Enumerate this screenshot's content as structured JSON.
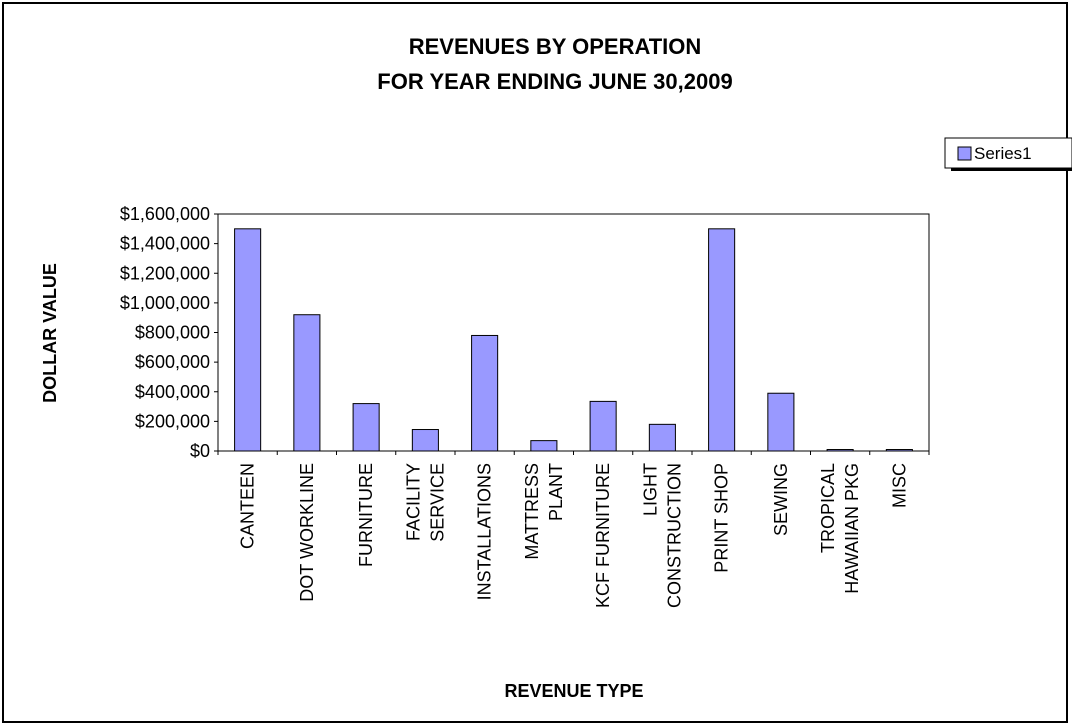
{
  "chart_data": {
    "type": "bar",
    "title": "REVENUES BY OPERATION",
    "subtitle": "FOR YEAR ENDING JUNE 30,2009",
    "xlabel": "REVENUE TYPE",
    "ylabel": "DOLLAR VALUE",
    "ylim": [
      0,
      1600000
    ],
    "y_ticks": [
      {
        "value": 0,
        "label": "$0"
      },
      {
        "value": 200000,
        "label": "$200,000"
      },
      {
        "value": 400000,
        "label": "$400,000"
      },
      {
        "value": 600000,
        "label": "$600,000"
      },
      {
        "value": 800000,
        "label": "$800,000"
      },
      {
        "value": 1000000,
        "label": "$1,000,000"
      },
      {
        "value": 1200000,
        "label": "$1,200,000"
      },
      {
        "value": 1400000,
        "label": "$1,400,000"
      },
      {
        "value": 1600000,
        "label": "$1,600,000"
      }
    ],
    "categories": [
      [
        "CANTEEN"
      ],
      [
        "DOT WORKLINE"
      ],
      [
        "FURNITURE"
      ],
      [
        "FACILITY",
        "SERVICE"
      ],
      [
        "INSTALLATIONS"
      ],
      [
        "MATTRESS",
        "PLANT"
      ],
      [
        "KCF FURNITURE"
      ],
      [
        "LIGHT",
        "CONSTRUCTION"
      ],
      [
        "PRINT SHOP"
      ],
      [
        "SEWING"
      ],
      [
        "TROPICAL",
        "HAWAIIAN PKG"
      ],
      [
        "MISC"
      ]
    ],
    "series": [
      {
        "name": "Series1",
        "color": "#9999ff",
        "values": [
          1500000,
          920000,
          320000,
          145000,
          780000,
          70000,
          335000,
          180000,
          1500000,
          390000,
          10000,
          10000
        ]
      }
    ],
    "grid": false,
    "legend_position": "right"
  }
}
